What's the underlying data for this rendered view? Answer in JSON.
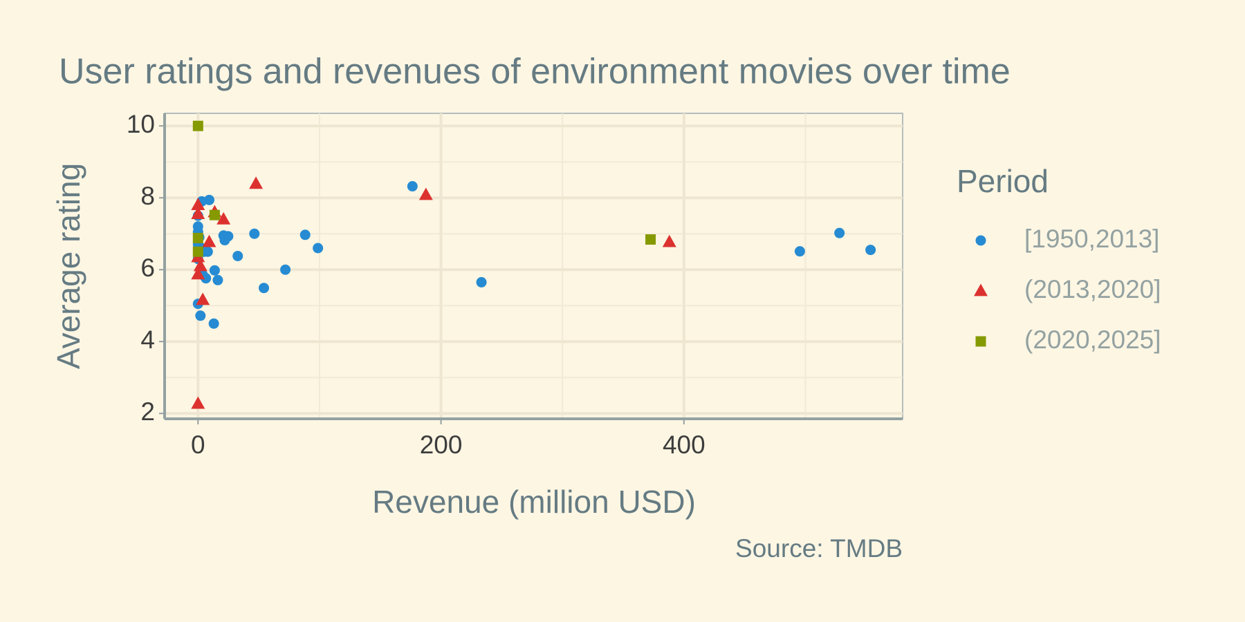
{
  "chart_data": {
    "type": "scatter",
    "title": "User ratings and revenues of environment movies over time",
    "x_label": "Revenue (million USD)",
    "y_label": "Average rating",
    "source": "Source: TMDB",
    "legend_title": "Period",
    "legend_position": "right",
    "grid": true,
    "xlim": [
      -27.5,
      580
    ],
    "ylim": [
      1.85,
      10.35
    ],
    "xticks": [
      0,
      200,
      400
    ],
    "yticks": [
      2,
      4,
      6,
      8,
      10
    ],
    "x_minor_ticks": [
      100,
      300,
      500
    ],
    "y_minor_ticks": [
      3,
      5,
      7,
      9
    ],
    "series": [
      {
        "name": "[1950,2013]",
        "color": "#268bd2",
        "marker": "circle",
        "x": [
          176.5,
          9.2,
          3,
          0,
          0,
          0,
          1,
          0,
          1,
          0,
          3,
          5,
          8,
          21,
          22,
          24.8,
          46.4,
          32.7,
          88.2,
          98.7,
          71.9,
          54.2,
          13.7,
          16.3,
          6.5,
          3,
          4,
          0,
          2,
          13,
          233.3,
          495.4,
          528,
          553.6
        ],
        "values": [
          8.32,
          7.94,
          7.9,
          7.5,
          7.2,
          7.05,
          6.9,
          6.7,
          6.5,
          6.3,
          6.6,
          6.5,
          6.5,
          6.95,
          6.82,
          6.93,
          7.0,
          6.38,
          6.97,
          6.6,
          6.0,
          5.49,
          5.98,
          5.71,
          5.76,
          5.9,
          5.85,
          5.05,
          4.72,
          4.5,
          5.65,
          6.51,
          7.02,
          6.55
        ]
      },
      {
        "name": "(2013,2020]",
        "color": "#dc322f",
        "marker": "triangle",
        "x": [
          47.7,
          187.6,
          388,
          0,
          0,
          21,
          13.7,
          9.2,
          0,
          0,
          3.9,
          0,
          2
        ],
        "values": [
          8.39,
          8.08,
          6.77,
          7.8,
          7.55,
          7.4,
          7.6,
          6.77,
          6.35,
          5.87,
          5.16,
          2.27,
          6.1
        ]
      },
      {
        "name": "(2020,2025]",
        "color": "#859900",
        "marker": "square",
        "x": [
          0,
          13.7,
          372.5,
          0,
          0
        ],
        "values": [
          10,
          7.52,
          6.84,
          6.88,
          6.5
        ]
      }
    ]
  }
}
